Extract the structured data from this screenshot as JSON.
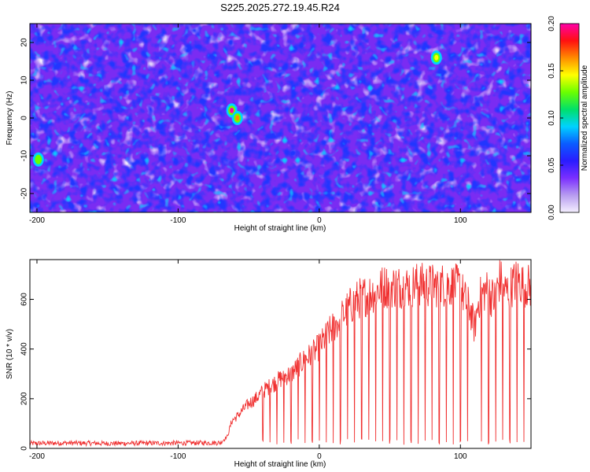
{
  "title": "S225.2025.272.19.45.R24",
  "chart_data": [
    {
      "type": "heatmap",
      "xlabel": "Height of straight line (km)",
      "ylabel": "Frequency (Hz)",
      "xlim": [
        -205,
        150
      ],
      "ylim": [
        -25,
        25
      ],
      "xticks": [
        -200,
        -100,
        0,
        100
      ],
      "yticks": [
        -20,
        -10,
        0,
        10,
        20
      ],
      "colorbar": {
        "label": "Normalized spectral amplitude",
        "range": [
          0,
          0.2
        ],
        "ticks": [
          "0.00",
          "0.05",
          "0.10",
          "0.15",
          "0.20"
        ],
        "colors": [
          "#f5f0ff",
          "#b79cf0",
          "#7b2fff",
          "#2a1cff",
          "#0a5cff",
          "#00d2ff",
          "#00e06a",
          "#6aff00",
          "#ffff00",
          "#ff8c00",
          "#ff1010",
          "#ff00a8"
        ]
      },
      "features": [
        {
          "x": -62,
          "y": 2,
          "value": 0.2
        },
        {
          "x": -58,
          "y": 0,
          "value": 0.17
        },
        {
          "x": 83,
          "y": 16,
          "value": 0.14
        },
        {
          "x": -199,
          "y": -11,
          "value": 0.12
        }
      ],
      "grid": false
    },
    {
      "type": "line",
      "xlabel": "Height of straight line (km)",
      "ylabel": "SNR (10 * v/v)",
      "xlim": [
        -205,
        150
      ],
      "ylim": [
        0,
        760
      ],
      "xticks": [
        -200,
        -100,
        0,
        100
      ],
      "yticks": [
        0,
        200,
        400,
        600
      ],
      "color": "#f03030",
      "series": [
        {
          "points": [
            [
              -205,
              20
            ],
            [
              -180,
              22
            ],
            [
              -150,
              20
            ],
            [
              -120,
              21
            ],
            [
              -90,
              22
            ],
            [
              -70,
              23
            ],
            [
              -65,
              50
            ],
            [
              -62,
              110
            ],
            [
              -58,
              130
            ],
            [
              -55,
              150
            ],
            [
              -50,
              180
            ],
            [
              -45,
              200
            ],
            [
              -40,
              230
            ],
            [
              -35,
              250
            ],
            [
              -30,
              270
            ],
            [
              -25,
              290
            ],
            [
              -20,
              300
            ],
            [
              -15,
              330
            ],
            [
              -10,
              360
            ],
            [
              -5,
              380
            ],
            [
              0,
              410
            ],
            [
              5,
              450
            ],
            [
              10,
              490
            ],
            [
              15,
              520
            ],
            [
              20,
              560
            ],
            [
              25,
              590
            ],
            [
              30,
              610
            ],
            [
              35,
              620
            ],
            [
              40,
              635
            ],
            [
              45,
              650
            ],
            [
              50,
              655
            ],
            [
              60,
              650
            ],
            [
              70,
              660
            ],
            [
              80,
              655
            ],
            [
              90,
              660
            ],
            [
              100,
              650
            ],
            [
              103,
              600
            ],
            [
              107,
              560
            ],
            [
              110,
              480
            ],
            [
              113,
              600
            ],
            [
              118,
              640
            ],
            [
              124,
              600
            ],
            [
              128,
              680
            ],
            [
              132,
              630
            ],
            [
              136,
              650
            ],
            [
              140,
              680
            ],
            [
              145,
              660
            ],
            [
              150,
              650
            ]
          ],
          "dropouts": [
            -40,
            -35,
            -30,
            -25,
            -20,
            -15,
            -10,
            -5,
            0,
            5,
            10,
            15,
            20,
            25,
            30,
            35,
            40,
            45,
            50,
            55,
            60,
            65,
            70,
            75,
            80,
            85,
            90,
            95,
            100,
            105,
            115,
            120,
            125,
            130,
            135,
            140,
            145
          ]
        }
      ],
      "grid": false
    }
  ]
}
